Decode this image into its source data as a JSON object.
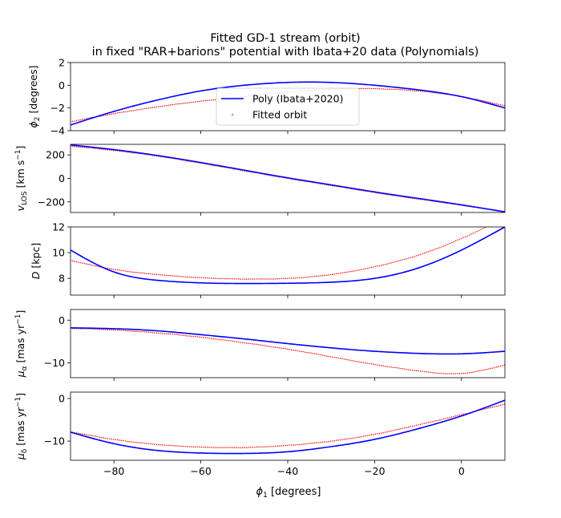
{
  "title_line1": "Fitted GD-1 stream (orbit)",
  "title_line2": "in fixed \"RAR+barions\" potential with Ibata+20 data (Polynomials)",
  "xlabel": "ϕ",
  "xlabel_sub": "1",
  "xlabel_unit": " [degrees]",
  "xlim": [
    -90,
    10
  ],
  "xticks": [
    -80,
    -60,
    -40,
    -20,
    0
  ],
  "xtick_labels": [
    "−80",
    "−60",
    "−40",
    "−20",
    "0"
  ],
  "colors": {
    "poly": "#0000ff",
    "orbit": "#ff0000"
  },
  "legend": {
    "placement": "bottom-center of first panel",
    "poly_label": "Poly (Ibata+2020)",
    "orbit_label": "Fitted orbit"
  },
  "chart_data": [
    {
      "type": "line",
      "ylabel": "ϕ",
      "ylabel_sub": "2",
      "ylabel_unit": " [degrees]",
      "ylim": [
        -4,
        2
      ],
      "yticks": [
        -4,
        -2,
        0,
        2
      ],
      "ytick_labels": [
        "−4",
        "−2",
        "0",
        "2"
      ],
      "x": [
        -90,
        -80,
        -70,
        -60,
        -50,
        -40,
        -30,
        -20,
        -10,
        0,
        10
      ],
      "series": [
        {
          "name": "Poly (Ibata+2020)",
          "style": "line",
          "values": [
            -3.5,
            -2.3,
            -1.3,
            -0.5,
            0.0,
            0.25,
            0.25,
            0.0,
            -0.4,
            -1.0,
            -2.0
          ]
        },
        {
          "name": "Fitted orbit",
          "style": "points",
          "values": [
            -3.2,
            -2.5,
            -1.9,
            -1.4,
            -1.0,
            -0.6,
            -0.35,
            -0.3,
            -0.5,
            -1.0,
            -1.8
          ]
        }
      ]
    },
    {
      "type": "line",
      "ylabel": "v",
      "ylabel_sub": "LOS",
      "ylabel_unit": " [km s",
      "ylabel_sup": "−1",
      "ylabel_end": "]",
      "ylim": [
        -290,
        290
      ],
      "yticks": [
        -200,
        0,
        200
      ],
      "ytick_labels": [
        "−200",
        "0",
        "200"
      ],
      "x": [
        -90,
        -80,
        -70,
        -60,
        -50,
        -40,
        -30,
        -20,
        -10,
        0,
        10
      ],
      "series": [
        {
          "name": "Poly (Ibata+2020)",
          "style": "line",
          "values": [
            285,
            245,
            195,
            135,
            70,
            5,
            -55,
            -115,
            -170,
            -225,
            -285
          ]
        },
        {
          "name": "Fitted orbit",
          "style": "points",
          "values": [
            275,
            238,
            190,
            130,
            65,
            0,
            -60,
            -120,
            -175,
            -228,
            -282
          ]
        }
      ]
    },
    {
      "type": "line",
      "ylabel": "D",
      "ylabel_unit": " [kpc]",
      "ylim": [
        6.7,
        12
      ],
      "yticks": [
        8,
        10,
        12
      ],
      "ytick_labels": [
        "8",
        "10",
        "12"
      ],
      "x": [
        -90,
        -80,
        -70,
        -60,
        -50,
        -40,
        -30,
        -20,
        -10,
        0,
        10
      ],
      "series": [
        {
          "name": "Poly (Ibata+2020)",
          "style": "line",
          "values": [
            10.2,
            8.5,
            7.85,
            7.65,
            7.6,
            7.62,
            7.7,
            8.0,
            8.8,
            10.2,
            12.0
          ]
        },
        {
          "name": "Fitted orbit",
          "style": "points",
          "values": [
            9.4,
            8.7,
            8.3,
            8.05,
            7.95,
            8.0,
            8.3,
            8.9,
            9.8,
            11.1,
            12.7
          ]
        }
      ]
    },
    {
      "type": "line",
      "ylabel": "μ",
      "ylabel_sub": "α",
      "ylabel_unit": " [mas yr",
      "ylabel_sup": "−1",
      "ylabel_end": "]",
      "ylim": [
        -13.5,
        2.5
      ],
      "yticks": [
        -10,
        0
      ],
      "ytick_labels": [
        "−10",
        "0"
      ],
      "x": [
        -90,
        -80,
        -70,
        -60,
        -50,
        -40,
        -30,
        -20,
        -10,
        0,
        10
      ],
      "series": [
        {
          "name": "Poly (Ibata+2020)",
          "style": "line",
          "values": [
            -1.8,
            -2.0,
            -2.5,
            -3.4,
            -4.4,
            -5.5,
            -6.5,
            -7.3,
            -7.8,
            -7.9,
            -7.3
          ]
        },
        {
          "name": "Fitted orbit",
          "style": "points",
          "values": [
            -1.9,
            -2.3,
            -3.0,
            -4.0,
            -5.3,
            -6.8,
            -8.6,
            -10.4,
            -11.9,
            -12.5,
            -10.5
          ]
        }
      ]
    },
    {
      "type": "line",
      "ylabel": "μ",
      "ylabel_sub": "δ",
      "ylabel_unit": " [mas yr",
      "ylabel_sup": "−1",
      "ylabel_end": "]",
      "ylim": [
        -14.5,
        1.5
      ],
      "yticks": [
        -10,
        0
      ],
      "ytick_labels": [
        "−10",
        "0"
      ],
      "x": [
        -90,
        -80,
        -70,
        -60,
        -50,
        -40,
        -30,
        -20,
        -10,
        0,
        10
      ],
      "series": [
        {
          "name": "Poly (Ibata+2020)",
          "style": "line",
          "values": [
            -7.9,
            -10.6,
            -12.2,
            -12.8,
            -12.9,
            -12.5,
            -11.3,
            -9.6,
            -7.1,
            -4.1,
            -0.4
          ]
        },
        {
          "name": "Fitted orbit",
          "style": "points",
          "values": [
            -7.8,
            -9.6,
            -10.8,
            -11.4,
            -11.5,
            -11.0,
            -10.0,
            -8.4,
            -6.2,
            -3.8,
            -1.3
          ]
        }
      ]
    }
  ]
}
